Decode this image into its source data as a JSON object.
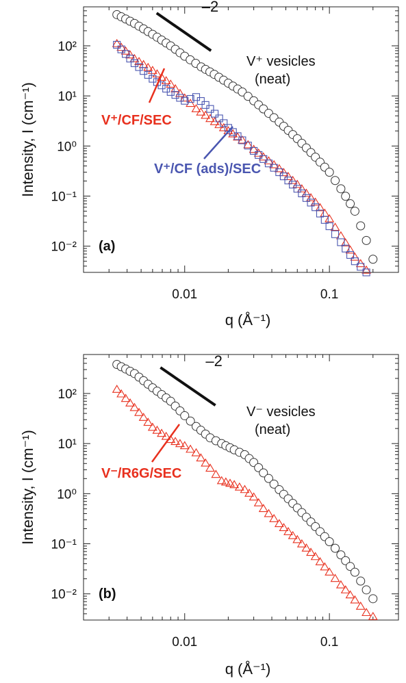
{
  "chart_data": [
    {
      "type": "scatter",
      "panel_label": "(a)",
      "xlabel": "q (Å⁻¹)",
      "ylabel": "Intensity, I (cm⁻¹)",
      "xscale": "log",
      "yscale": "log",
      "xlim": [
        0.002,
        0.3
      ],
      "ylim": [
        0.003,
        600
      ],
      "x_ticks": [
        "0.01",
        "0.1"
      ],
      "y_ticks": [
        "10⁻²",
        "10⁻¹",
        "10⁰",
        "10¹",
        "10²"
      ],
      "slope_label": "–2",
      "slope_line": {
        "x": [
          0.0064,
          0.0152
        ],
        "y": [
          450,
          80
        ]
      },
      "series": [
        {
          "name": "V⁺ vesicles (neat)",
          "label_lines": [
            "V⁺ vesicles",
            "(neat)"
          ],
          "marker": "circle",
          "color": "#333333",
          "x": [
            0.0034,
            0.0045,
            0.006,
            0.008,
            0.01,
            0.013,
            0.016,
            0.02,
            0.025,
            0.03,
            0.035,
            0.045,
            0.06,
            0.08,
            0.1,
            0.12,
            0.15,
            0.18,
            0.2
          ],
          "y": [
            420,
            280,
            170,
            100,
            62,
            38,
            27,
            18,
            12,
            8,
            5.5,
            3,
            1.4,
            0.6,
            0.3,
            0.14,
            0.05,
            0.013,
            0.0055
          ]
        },
        {
          "name": "V⁺/CF/SEC",
          "marker": "triangle",
          "color": "#e8301e",
          "x": [
            0.0034,
            0.0045,
            0.006,
            0.008,
            0.01,
            0.012,
            0.015,
            0.02,
            0.025,
            0.03,
            0.035,
            0.045,
            0.06,
            0.08,
            0.1,
            0.12,
            0.15,
            0.18
          ],
          "y": [
            110,
            55,
            32,
            17,
            9,
            5.5,
            3.5,
            2,
            1.3,
            0.85,
            0.6,
            0.35,
            0.17,
            0.075,
            0.035,
            0.016,
            0.006,
            0.0033
          ]
        },
        {
          "name": "V⁺/CF (ads)/SEC",
          "marker": "square",
          "color": "#4a56b0",
          "x": [
            0.0034,
            0.0045,
            0.006,
            0.008,
            0.01,
            0.012,
            0.015,
            0.02,
            0.025,
            0.03,
            0.035,
            0.045,
            0.06,
            0.08,
            0.1,
            0.12,
            0.15,
            0.18
          ],
          "y": [
            105,
            45,
            22,
            12,
            8,
            9.5,
            5.5,
            2.3,
            1.3,
            0.8,
            0.55,
            0.3,
            0.14,
            0.06,
            0.025,
            0.012,
            0.005,
            0.003
          ]
        }
      ]
    },
    {
      "type": "scatter",
      "panel_label": "(b)",
      "xlabel": "q (Å⁻¹)",
      "ylabel": "Intensity, I (cm⁻¹)",
      "xscale": "log",
      "yscale": "log",
      "xlim": [
        0.002,
        0.3
      ],
      "ylim": [
        0.003,
        600
      ],
      "x_ticks": [
        "0.01",
        "0.1"
      ],
      "y_ticks": [
        "10⁻²",
        "10⁻¹",
        "10⁰",
        "10¹",
        "10²"
      ],
      "slope_label": "–2",
      "slope_line": {
        "x": [
          0.0068,
          0.0163
        ],
        "y": [
          330,
          58
        ]
      },
      "series": [
        {
          "name": "V⁻ vesicles (neat)",
          "label_lines": [
            "V⁻ vesicles",
            "(neat)"
          ],
          "marker": "circle",
          "color": "#333333",
          "x": [
            0.0034,
            0.0045,
            0.006,
            0.008,
            0.01,
            0.012,
            0.015,
            0.018,
            0.022,
            0.026,
            0.03,
            0.035,
            0.045,
            0.06,
            0.08,
            0.1,
            0.12,
            0.15,
            0.18,
            0.2
          ],
          "y": [
            380,
            250,
            130,
            70,
            36,
            22,
            13,
            10,
            7.5,
            6,
            4.2,
            2.6,
            1.2,
            0.52,
            0.22,
            0.11,
            0.06,
            0.027,
            0.012,
            0.008
          ]
        },
        {
          "name": "V⁻/R6G/SEC",
          "marker": "triangle",
          "color": "#e8301e",
          "x": [
            0.0034,
            0.0045,
            0.006,
            0.008,
            0.01,
            0.012,
            0.015,
            0.018,
            0.022,
            0.026,
            0.03,
            0.035,
            0.045,
            0.06,
            0.08,
            0.1,
            0.12,
            0.15,
            0.18,
            0.2
          ],
          "y": [
            120,
            52,
            21,
            12,
            9,
            6.5,
            3.2,
            1.8,
            1.5,
            1.2,
            0.85,
            0.5,
            0.25,
            0.12,
            0.055,
            0.027,
            0.015,
            0.0075,
            0.0042,
            0.0035
          ]
        }
      ]
    }
  ]
}
